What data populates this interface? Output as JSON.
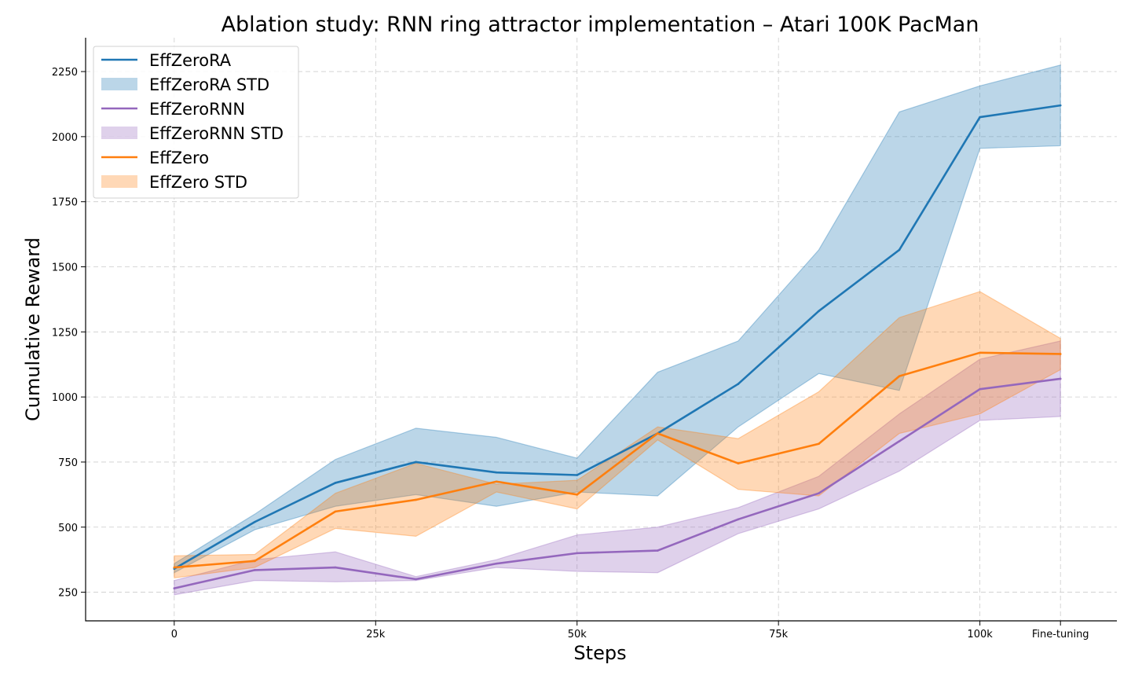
{
  "chart_data": {
    "type": "line",
    "title": "Ablation study: RNN ring attractor implementation – Atari 100K PacMan",
    "xlabel": "Steps",
    "ylabel": "Cumulative Reward",
    "xlim": [
      -11000,
      117000
    ],
    "ylim": [
      140,
      2380
    ],
    "grid": true,
    "legend_position": "top-left",
    "x_ticks": [
      {
        "value": 0,
        "label": "0"
      },
      {
        "value": 25000,
        "label": "25k"
      },
      {
        "value": 50000,
        "label": "50k"
      },
      {
        "value": 75000,
        "label": "75k"
      },
      {
        "value": 100000,
        "label": "100k"
      },
      {
        "value": 110000,
        "label": "Fine-tuning"
      }
    ],
    "y_ticks": [
      {
        "value": 250,
        "label": "250"
      },
      {
        "value": 500,
        "label": "500"
      },
      {
        "value": 750,
        "label": "750"
      },
      {
        "value": 1000,
        "label": "1000"
      },
      {
        "value": 1250,
        "label": "1250"
      },
      {
        "value": 1500,
        "label": "1500"
      },
      {
        "value": 1750,
        "label": "1750"
      },
      {
        "value": 2000,
        "label": "2000"
      },
      {
        "value": 2250,
        "label": "2250"
      }
    ],
    "x": [
      0,
      10000,
      20000,
      30000,
      40000,
      50000,
      60000,
      70000,
      80000,
      90000,
      100000,
      110000
    ],
    "series": [
      {
        "name": "EffZeroRA",
        "std_name": "EffZeroRA STD",
        "color": "#1f77b4",
        "values": [
          340,
          520,
          670,
          750,
          710,
          700,
          860,
          1050,
          1330,
          1565,
          2075,
          2120
        ],
        "upper": [
          360,
          550,
          760,
          880,
          845,
          765,
          1095,
          1215,
          1565,
          2095,
          2195,
          2275
        ],
        "lower": [
          325,
          490,
          580,
          625,
          580,
          635,
          620,
          885,
          1090,
          1025,
          1955,
          1965
        ]
      },
      {
        "name": "EffZeroRNN",
        "std_name": "EffZeroRNN STD",
        "color": "#9467bd",
        "values": [
          265,
          335,
          345,
          300,
          360,
          400,
          410,
          530,
          630,
          830,
          1030,
          1070
        ],
        "upper": [
          295,
          375,
          405,
          310,
          375,
          470,
          500,
          575,
          695,
          935,
          1145,
          1215
        ],
        "lower": [
          240,
          295,
          290,
          295,
          345,
          330,
          325,
          475,
          570,
          715,
          910,
          925
        ]
      },
      {
        "name": "EffZero",
        "std_name": "EffZero STD",
        "color": "#ff7f0e",
        "values": [
          345,
          370,
          560,
          605,
          675,
          625,
          860,
          745,
          820,
          1080,
          1170,
          1165
        ],
        "upper": [
          390,
          395,
          630,
          745,
          665,
          680,
          885,
          840,
          1020,
          1305,
          1405,
          1225
        ],
        "lower": [
          305,
          345,
          495,
          465,
          635,
          570,
          835,
          645,
          620,
          860,
          935,
          1105
        ]
      }
    ]
  }
}
